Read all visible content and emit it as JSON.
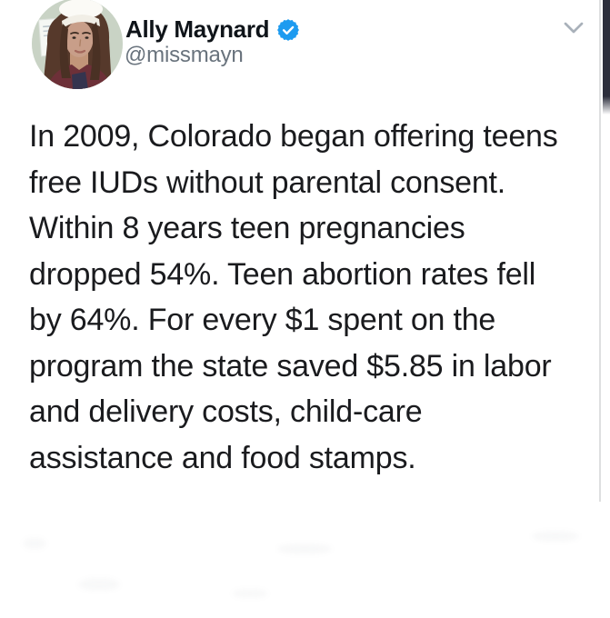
{
  "tweet": {
    "author": {
      "display_name": "Ally Maynard",
      "handle": "@missmayn",
      "verified": true
    },
    "body_lines": [
      "In 2009, Colorado began offering teens",
      "free IUDs without parental consent.",
      "Within 8 years teen pregnancies",
      "dropped 54%. Teen abortion rates fell",
      "by 64%. For every $1 spent on the",
      "program the state saved $5.85 in labor",
      "and delivery costs, child-care",
      "assistance and food stamps."
    ],
    "body_text": "In 2009, Colorado began offering teens free IUDs without parental consent. Within 8 years teen pregnancies dropped 54%. Teen abortion rates fell by 64%. For every $1 spent on the program the state saved $5.85 in labor and delivery costs, child-care assistance and food stamps."
  },
  "icons": {
    "verified": "verified-badge-icon",
    "more_menu": "chevron-down-icon",
    "avatar": "avatar"
  },
  "colors": {
    "verified_blue": "#1d9bf0",
    "name": "#0f1419",
    "handle": "#69737d",
    "body": "#1a1b1e",
    "chevron": "#a9b1ba",
    "edge_bar": "#2c2e3c"
  }
}
